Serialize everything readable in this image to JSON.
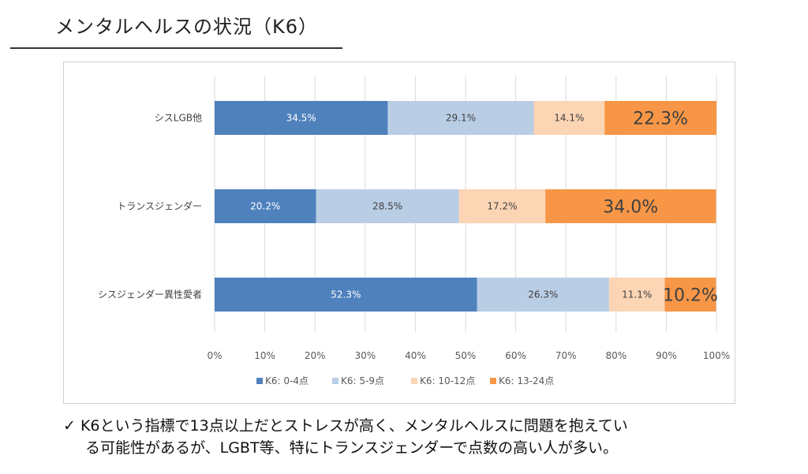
{
  "header": {
    "title": "メンタルヘルスの状況（K6）"
  },
  "chart_data": {
    "type": "bar",
    "orientation": "horizontal",
    "stacked": "percent",
    "categories": [
      "シスLGB他",
      "トランスジェンダー",
      "シスジェンダー異性愛者"
    ],
    "series": [
      {
        "name": "K6: 0-4点",
        "color": "#4f81bd",
        "values": [
          34.5,
          20.2,
          52.3
        ],
        "labels": [
          "34.5%",
          "20.2%",
          "52.3%"
        ]
      },
      {
        "name": "K6: 5-9点",
        "color": "#b9cde5",
        "values": [
          29.1,
          28.5,
          26.3
        ],
        "labels": [
          "29.1%",
          "28.5%",
          "26.3%"
        ]
      },
      {
        "name": "K6: 10-12点",
        "color": "#fcd5b5",
        "values": [
          14.1,
          17.2,
          11.1
        ],
        "labels": [
          "14.1%",
          "17.2%",
          "11.1%"
        ]
      },
      {
        "name": "K6: 13-24点",
        "color": "#f79646",
        "values": [
          22.3,
          34.0,
          10.2
        ],
        "labels": [
          "22.3%",
          "34.0%",
          "10.2%"
        ]
      }
    ],
    "xlim": [
      0,
      100
    ],
    "xticks": [
      "0%",
      "10%",
      "20%",
      "30%",
      "40%",
      "50%",
      "60%",
      "70%",
      "80%",
      "90%",
      "100%"
    ],
    "grid": true,
    "legend": "bottom"
  },
  "note": {
    "check": "✓",
    "line1": "K6という指標で13点以上だとストレスが高く、メンタルヘルスに問題を抱えてい",
    "line2": "る可能性があるが、LGBT等、特にトランスジェンダーで点数の高い人が多い。"
  }
}
